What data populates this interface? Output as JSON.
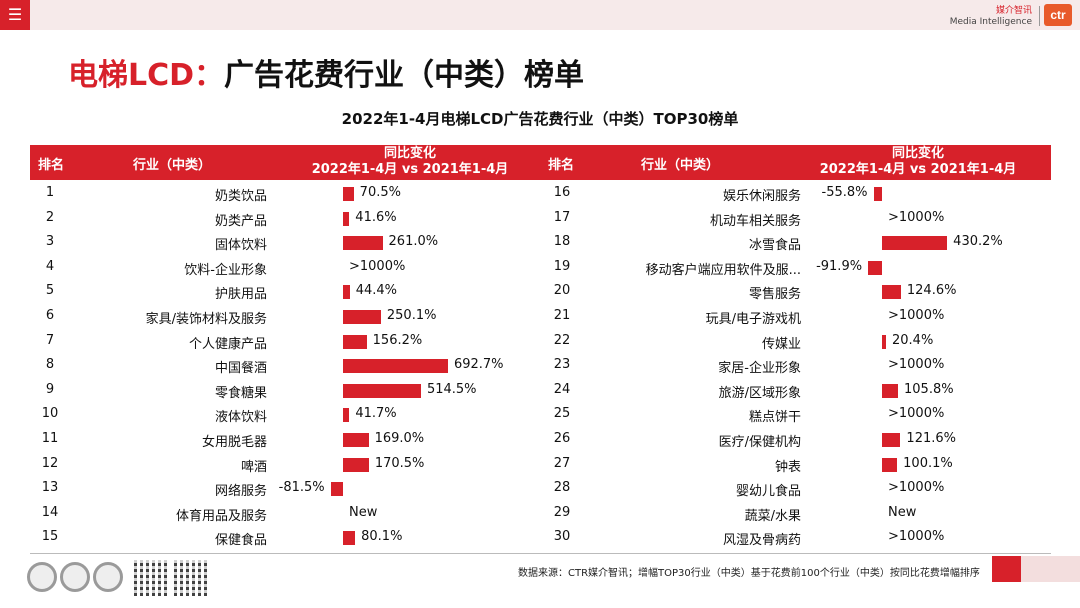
{
  "header": {
    "menu_icon": "hamburger-icon",
    "brand_cn": "媒介智讯",
    "brand_en": "Media Intelligence",
    "logo_text": "ctr"
  },
  "title": {
    "accent": "电梯LCD：",
    "rest": "广告花费行业（中类）榜单"
  },
  "subtitle": "2022年1-4月电梯LCD广告花费行业（中类）TOP30榜单",
  "table": {
    "col_rank": "排名",
    "col_industry": "行业（中类）",
    "col_change_line1": "同比变化",
    "col_change_line2": "2022年1-4月 vs 2021年1-4月",
    "colors": {
      "bar": "#d7212a",
      "header": "#d7212a"
    },
    "left": [
      {
        "rank": "1",
        "industry": "奶类饮品",
        "value": "70.5%",
        "num": 70.5
      },
      {
        "rank": "2",
        "industry": "奶类产品",
        "value": "41.6%",
        "num": 41.6
      },
      {
        "rank": "3",
        "industry": "固体饮料",
        "value": "261.0%",
        "num": 261.0
      },
      {
        "rank": "4",
        "industry": "饮料-企业形象",
        "value": ">1000%",
        "num": null
      },
      {
        "rank": "5",
        "industry": "护肤用品",
        "value": "44.4%",
        "num": 44.4
      },
      {
        "rank": "6",
        "industry": "家具/装饰材料及服务",
        "value": "250.1%",
        "num": 250.1
      },
      {
        "rank": "7",
        "industry": "个人健康产品",
        "value": "156.2%",
        "num": 156.2
      },
      {
        "rank": "8",
        "industry": "中国餐酒",
        "value": "692.7%",
        "num": 692.7
      },
      {
        "rank": "9",
        "industry": "零食糖果",
        "value": "514.5%",
        "num": 514.5
      },
      {
        "rank": "10",
        "industry": "液体饮料",
        "value": "41.7%",
        "num": 41.7
      },
      {
        "rank": "11",
        "industry": "女用脱毛器",
        "value": "169.0%",
        "num": 169.0
      },
      {
        "rank": "12",
        "industry": "啤酒",
        "value": "170.5%",
        "num": 170.5
      },
      {
        "rank": "13",
        "industry": "网络服务",
        "value": "-81.5%",
        "num": -81.5
      },
      {
        "rank": "14",
        "industry": "体育用品及服务",
        "value": "New",
        "num": null
      },
      {
        "rank": "15",
        "industry": "保健食品",
        "value": "80.1%",
        "num": 80.1
      }
    ],
    "right": [
      {
        "rank": "16",
        "industry": "娱乐休闲服务",
        "value": "-55.8%",
        "num": -55.8
      },
      {
        "rank": "17",
        "industry": "机动车相关服务",
        "value": ">1000%",
        "num": null
      },
      {
        "rank": "18",
        "industry": "冰雪食品",
        "value": "430.2%",
        "num": 430.2
      },
      {
        "rank": "19",
        "industry": "移动客户端应用软件及服...",
        "value": "-91.9%",
        "num": -91.9
      },
      {
        "rank": "20",
        "industry": "零售服务",
        "value": "124.6%",
        "num": 124.6
      },
      {
        "rank": "21",
        "industry": "玩具/电子游戏机",
        "value": ">1000%",
        "num": null
      },
      {
        "rank": "22",
        "industry": "传媒业",
        "value": "20.4%",
        "num": 20.4
      },
      {
        "rank": "23",
        "industry": "家居-企业形象",
        "value": ">1000%",
        "num": null
      },
      {
        "rank": "24",
        "industry": "旅游/区域形象",
        "value": "105.8%",
        "num": 105.8
      },
      {
        "rank": "25",
        "industry": "糕点饼干",
        "value": ">1000%",
        "num": null
      },
      {
        "rank": "26",
        "industry": "医疗/保健机构",
        "value": "121.6%",
        "num": 121.6
      },
      {
        "rank": "27",
        "industry": "钟表",
        "value": "100.1%",
        "num": 100.1
      },
      {
        "rank": "28",
        "industry": "婴幼儿食品",
        "value": ">1000%",
        "num": null
      },
      {
        "rank": "29",
        "industry": "蔬菜/水果",
        "value": "New",
        "num": null
      },
      {
        "rank": "30",
        "industry": "风湿及骨病药",
        "value": ">1000%",
        "num": null
      }
    ]
  },
  "footer": {
    "source": "数据来源：CTR媒介智讯；增幅TOP30行业（中类）基于花费前100个行业（中类）按同比花费增幅排序",
    "seal_icon": "sgs-certification-seal-icon",
    "qr_icon": "qr-code-icon"
  }
}
